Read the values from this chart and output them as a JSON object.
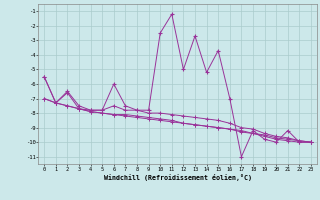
{
  "xlabel": "Windchill (Refroidissement éolien,°C)",
  "bg_color": "#cce8ea",
  "grid_color": "#aacccc",
  "line_color": "#993399",
  "xlim": [
    -0.5,
    23.5
  ],
  "ylim": [
    -11.5,
    -0.5
  ],
  "yticks": [
    -11,
    -10,
    -9,
    -8,
    -7,
    -6,
    -5,
    -4,
    -3,
    -2,
    -1
  ],
  "xticks": [
    0,
    1,
    2,
    3,
    4,
    5,
    6,
    7,
    8,
    9,
    10,
    11,
    12,
    13,
    14,
    15,
    16,
    17,
    18,
    19,
    20,
    21,
    22,
    23
  ],
  "series_main": [
    [
      0,
      -5.5
    ],
    [
      1,
      -7.3
    ],
    [
      2,
      -6.5
    ],
    [
      3,
      -7.5
    ],
    [
      4,
      -7.8
    ],
    [
      5,
      -7.8
    ],
    [
      6,
      -6.0
    ],
    [
      7,
      -7.5
    ],
    [
      8,
      -7.8
    ],
    [
      9,
      -7.8
    ],
    [
      10,
      -2.5
    ],
    [
      11,
      -1.2
    ],
    [
      12,
      -5.0
    ],
    [
      13,
      -2.7
    ],
    [
      14,
      -5.2
    ],
    [
      15,
      -3.7
    ],
    [
      16,
      -7.0
    ],
    [
      17,
      -11.0
    ],
    [
      18,
      -9.2
    ],
    [
      19,
      -9.8
    ],
    [
      20,
      -10.0
    ],
    [
      21,
      -9.2
    ],
    [
      22,
      -10.0
    ],
    [
      23,
      -10.0
    ]
  ],
  "series2": [
    [
      0,
      -5.5
    ],
    [
      1,
      -7.3
    ],
    [
      2,
      -6.6
    ],
    [
      3,
      -7.7
    ],
    [
      4,
      -7.8
    ],
    [
      5,
      -7.8
    ],
    [
      6,
      -7.5
    ],
    [
      7,
      -7.8
    ],
    [
      8,
      -7.8
    ],
    [
      9,
      -8.0
    ],
    [
      10,
      -8.0
    ],
    [
      11,
      -8.1
    ],
    [
      12,
      -8.2
    ],
    [
      13,
      -8.3
    ],
    [
      14,
      -8.4
    ],
    [
      15,
      -8.5
    ],
    [
      16,
      -8.7
    ],
    [
      17,
      -9.0
    ],
    [
      18,
      -9.1
    ],
    [
      19,
      -9.4
    ],
    [
      20,
      -9.6
    ],
    [
      21,
      -9.7
    ],
    [
      22,
      -9.9
    ],
    [
      23,
      -10.0
    ]
  ],
  "series3": [
    [
      0,
      -7.0
    ],
    [
      1,
      -7.3
    ],
    [
      2,
      -7.5
    ],
    [
      3,
      -7.7
    ],
    [
      4,
      -7.9
    ],
    [
      5,
      -8.0
    ],
    [
      6,
      -8.1
    ],
    [
      7,
      -8.1
    ],
    [
      8,
      -8.2
    ],
    [
      9,
      -8.3
    ],
    [
      10,
      -8.4
    ],
    [
      11,
      -8.5
    ],
    [
      12,
      -8.7
    ],
    [
      13,
      -8.8
    ],
    [
      14,
      -8.9
    ],
    [
      15,
      -9.0
    ],
    [
      16,
      -9.1
    ],
    [
      17,
      -9.3
    ],
    [
      18,
      -9.4
    ],
    [
      19,
      -9.5
    ],
    [
      20,
      -9.7
    ],
    [
      21,
      -9.8
    ],
    [
      22,
      -9.9
    ],
    [
      23,
      -10.0
    ]
  ],
  "series4": [
    [
      0,
      -7.0
    ],
    [
      1,
      -7.3
    ],
    [
      2,
      -7.5
    ],
    [
      3,
      -7.7
    ],
    [
      4,
      -7.9
    ],
    [
      5,
      -8.0
    ],
    [
      6,
      -8.1
    ],
    [
      7,
      -8.2
    ],
    [
      8,
      -8.3
    ],
    [
      9,
      -8.4
    ],
    [
      10,
      -8.5
    ],
    [
      11,
      -8.6
    ],
    [
      12,
      -8.7
    ],
    [
      13,
      -8.8
    ],
    [
      14,
      -8.9
    ],
    [
      15,
      -9.0
    ],
    [
      16,
      -9.1
    ],
    [
      17,
      -9.2
    ],
    [
      18,
      -9.4
    ],
    [
      19,
      -9.6
    ],
    [
      20,
      -9.8
    ],
    [
      21,
      -9.9
    ],
    [
      22,
      -10.0
    ],
    [
      23,
      -10.0
    ]
  ]
}
